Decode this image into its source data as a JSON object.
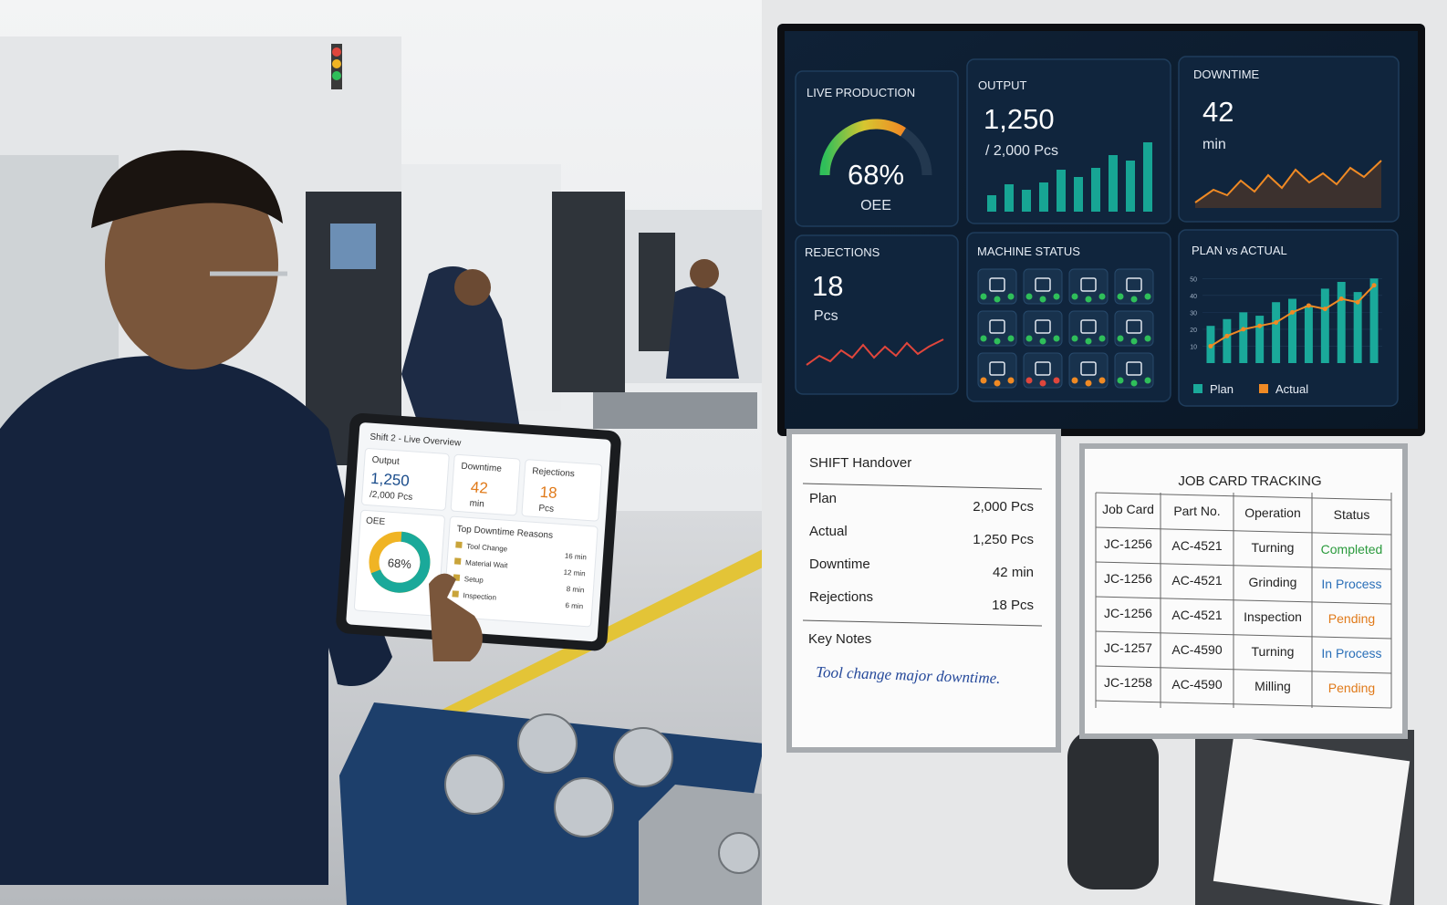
{
  "tablet": {
    "title": "Shift 2 - Live Overview",
    "output": {
      "label": "Output",
      "value": "1,250",
      "unit": "/2,000 Pcs"
    },
    "downtime": {
      "label": "Downtime",
      "value": "42",
      "unit": "min"
    },
    "rejections": {
      "label": "Rejections",
      "value": "18",
      "unit": "Pcs"
    },
    "oee": {
      "label": "OEE",
      "value": 68,
      "value_label": "68%"
    },
    "reasons_title": "Top Downtime Reasons",
    "reasons": [
      {
        "name": "Tool Change",
        "time": "16 min"
      },
      {
        "name": "Material Wait",
        "time": "12 min"
      },
      {
        "name": "Setup",
        "time": "8 min"
      },
      {
        "name": "Inspection",
        "time": "6 min"
      }
    ]
  },
  "tv": {
    "live_production": {
      "title": "LIVE PRODUCTION",
      "value": 68,
      "value_label": "68%",
      "label": "OEE"
    },
    "output": {
      "title": "OUTPUT",
      "value": "1,250",
      "unit": "/ 2,000 Pcs"
    },
    "downtime": {
      "title": "DOWNTIME",
      "value": "42",
      "unit": "min"
    },
    "rejections": {
      "title": "REJECTIONS",
      "value": "18",
      "unit": "Pcs"
    },
    "machine_status": {
      "title": "MACHINE STATUS",
      "colors": [
        "#2fbf5a",
        "#2fbf5a",
        "#2fbf5a",
        "#2fbf5a",
        "#2fbf5a",
        "#2fbf5a",
        "#2fbf5a",
        "#2fbf5a",
        "#f08a24",
        "#e0463c",
        "#f08a24",
        "#2fbf5a"
      ]
    },
    "plan_vs_actual": {
      "title": "PLAN vs ACTUAL",
      "ylim": [
        0,
        55
      ],
      "yticks": [
        10,
        20,
        30,
        40,
        50
      ],
      "series": [
        {
          "name": "Plan",
          "color": "#1aa99a",
          "values": [
            22,
            26,
            30,
            28,
            36,
            38,
            34,
            44,
            48,
            42,
            50
          ]
        },
        {
          "name": "Actual",
          "color": "#f08a24",
          "values": [
            10,
            16,
            20,
            22,
            24,
            30,
            34,
            32,
            38,
            36,
            46
          ]
        }
      ]
    }
  },
  "shift_handover": {
    "title": "SHIFT Handover",
    "rows": [
      [
        "Plan",
        "2,000 Pcs"
      ],
      [
        "Actual",
        "1,250 Pcs"
      ],
      [
        "Downtime",
        "42 min"
      ],
      [
        "Rejections",
        "18 Pcs"
      ]
    ],
    "notes_title": "Key Notes",
    "note": "Tool change major downtime."
  },
  "job_card": {
    "title": "JOB CARD TRACKING",
    "headers": [
      "Job Card",
      "Part No.",
      "Operation",
      "Status"
    ],
    "rows": [
      [
        "JC-1256",
        "AC-4521",
        "Turning",
        "Completed"
      ],
      [
        "JC-1256",
        "AC-4521",
        "Grinding",
        "In Process"
      ],
      [
        "JC-1256",
        "AC-4521",
        "Inspection",
        "Pending"
      ],
      [
        "JC-1257",
        "AC-4590",
        "Turning",
        "In Process"
      ],
      [
        "JC-1258",
        "AC-4590",
        "Milling",
        "Pending"
      ]
    ],
    "status_colors": {
      "Completed": "#2a9a3c",
      "In Process": "#2a6fb8",
      "Pending": "#e07a1a"
    }
  }
}
